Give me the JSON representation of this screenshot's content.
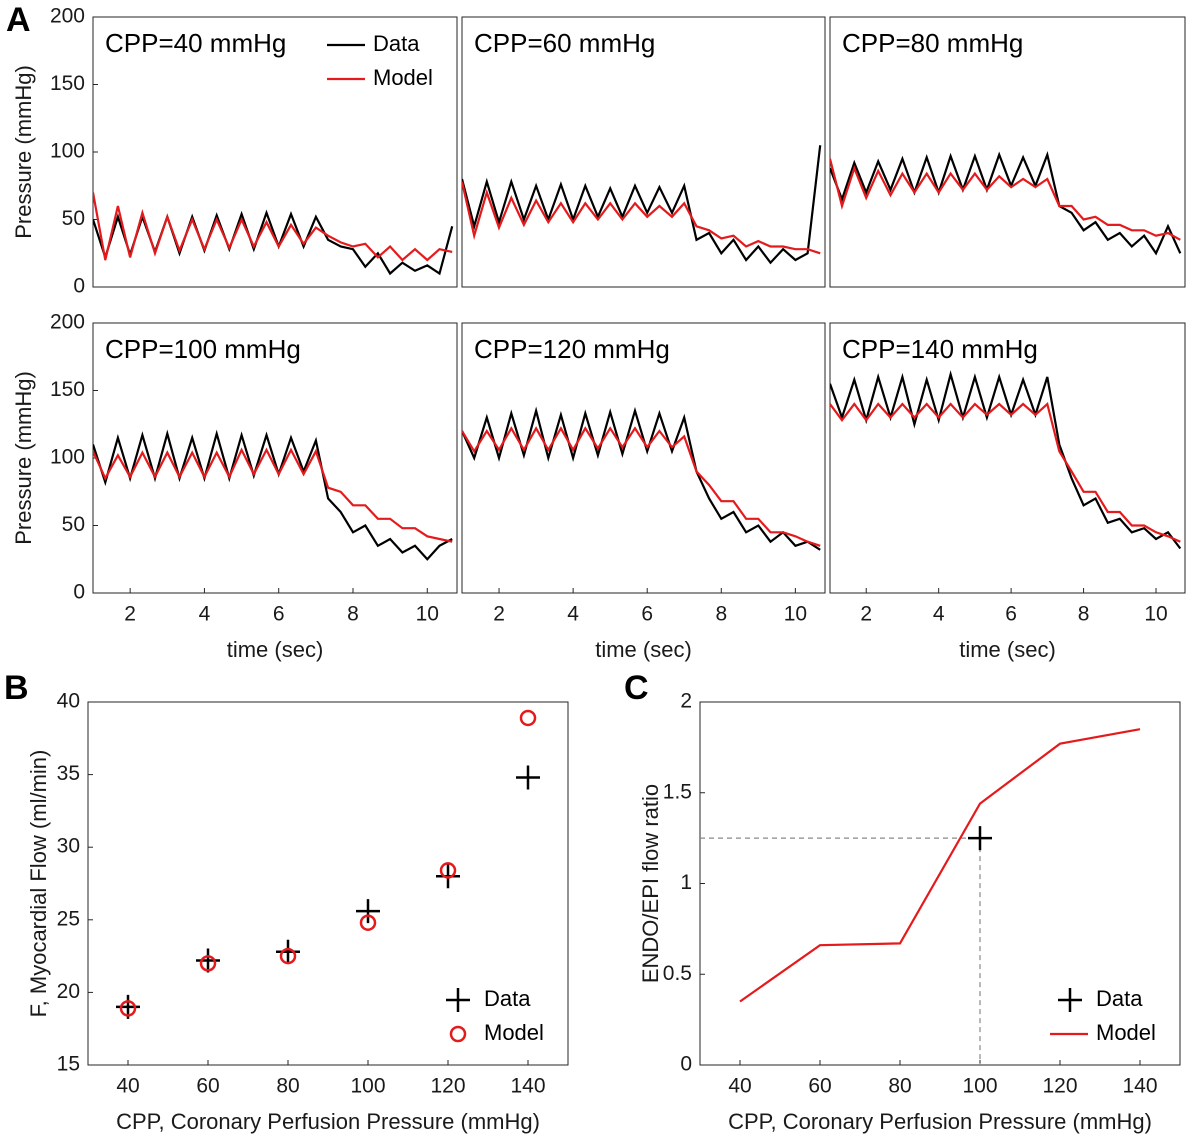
{
  "chart_data": [
    {
      "type": "line",
      "panel": "A",
      "title": "CPP=40 mmHg",
      "ylabel": "Pressure (mmHg)",
      "legend": "top-right",
      "x": [
        1,
        1.33,
        1.67,
        2,
        2.33,
        2.67,
        3,
        3.33,
        3.67,
        4,
        4.33,
        4.67,
        5,
        5.33,
        5.67,
        6,
        6.33,
        6.67,
        7,
        7.33,
        7.67,
        8,
        8.33,
        8.67,
        9,
        9.33,
        9.67,
        10,
        10.33,
        10.67
      ],
      "xlim": [
        1,
        10.8
      ],
      "ylim": [
        0,
        200
      ],
      "yticks": [
        0,
        50,
        100,
        150,
        200
      ],
      "series": [
        {
          "name": "Data",
          "color": "#000000",
          "values": [
            50,
            22,
            52,
            24,
            52,
            26,
            52,
            25,
            52,
            27,
            53,
            28,
            54,
            28,
            55,
            30,
            54,
            30,
            52,
            35,
            30,
            28,
            15,
            25,
            10,
            18,
            12,
            16,
            10,
            45
          ]
        },
        {
          "name": "Model",
          "color": "#e41a1c",
          "values": [
            70,
            20,
            60,
            22,
            55,
            25,
            52,
            27,
            50,
            28,
            50,
            29,
            50,
            30,
            48,
            30,
            46,
            32,
            44,
            38,
            33,
            30,
            32,
            22,
            30,
            20,
            28,
            20,
            28,
            26
          ]
        }
      ]
    },
    {
      "type": "line",
      "title": "CPP=60 mmHg",
      "x": [
        1,
        1.33,
        1.67,
        2,
        2.33,
        2.67,
        3,
        3.33,
        3.67,
        4,
        4.33,
        4.67,
        5,
        5.33,
        5.67,
        6,
        6.33,
        6.67,
        7,
        7.33,
        7.67,
        8,
        8.33,
        8.67,
        9,
        9.33,
        9.67,
        10,
        10.33,
        10.67
      ],
      "xlim": [
        1,
        10.8
      ],
      "ylim": [
        0,
        200
      ],
      "series": [
        {
          "color": "#000000",
          "values": [
            80,
            45,
            78,
            48,
            78,
            50,
            75,
            50,
            76,
            50,
            75,
            52,
            73,
            52,
            75,
            55,
            74,
            55,
            75,
            35,
            40,
            25,
            35,
            20,
            30,
            18,
            28,
            20,
            25,
            105
          ]
        },
        {
          "color": "#e41a1c",
          "values": [
            78,
            38,
            70,
            44,
            66,
            46,
            64,
            48,
            62,
            48,
            62,
            50,
            62,
            50,
            62,
            52,
            60,
            52,
            62,
            45,
            42,
            36,
            38,
            30,
            34,
            30,
            30,
            28,
            28,
            25
          ]
        }
      ]
    },
    {
      "type": "line",
      "title": "CPP=80 mmHg",
      "x": [
        1,
        1.33,
        1.67,
        2,
        2.33,
        2.67,
        3,
        3.33,
        3.67,
        4,
        4.33,
        4.67,
        5,
        5.33,
        5.67,
        6,
        6.33,
        6.67,
        7,
        7.33,
        7.67,
        8,
        8.33,
        8.67,
        9,
        9.33,
        9.67,
        10,
        10.33,
        10.67
      ],
      "xlim": [
        1,
        10.8
      ],
      "ylim": [
        0,
        200
      ],
      "series": [
        {
          "color": "#000000",
          "values": [
            88,
            65,
            92,
            70,
            93,
            72,
            95,
            70,
            96,
            70,
            97,
            72,
            97,
            72,
            98,
            75,
            96,
            75,
            98,
            60,
            55,
            42,
            48,
            35,
            40,
            30,
            38,
            25,
            45,
            25
          ]
        },
        {
          "color": "#e41a1c",
          "values": [
            95,
            60,
            88,
            66,
            86,
            68,
            84,
            70,
            84,
            70,
            84,
            72,
            84,
            72,
            82,
            74,
            80,
            74,
            80,
            60,
            60,
            50,
            52,
            46,
            46,
            42,
            42,
            38,
            40,
            35
          ]
        }
      ]
    },
    {
      "type": "line",
      "title": "CPP=100 mmHg",
      "ylabel": "Pressure (mmHg)",
      "xlabel": "time (sec)",
      "x": [
        1,
        1.33,
        1.67,
        2,
        2.33,
        2.67,
        3,
        3.33,
        3.67,
        4,
        4.33,
        4.67,
        5,
        5.33,
        5.67,
        6,
        6.33,
        6.67,
        7,
        7.33,
        7.67,
        8,
        8.33,
        8.67,
        9,
        9.33,
        9.67,
        10,
        10.33,
        10.67
      ],
      "xlim": [
        1,
        10.8
      ],
      "xticks": [
        2,
        4,
        6,
        8,
        10
      ],
      "ylim": [
        0,
        200
      ],
      "yticks": [
        0,
        50,
        100,
        150,
        200
      ],
      "series": [
        {
          "color": "#000000",
          "values": [
            110,
            82,
            115,
            85,
            117,
            85,
            118,
            85,
            115,
            85,
            118,
            85,
            117,
            87,
            117,
            88,
            115,
            90,
            113,
            70,
            60,
            45,
            50,
            35,
            40,
            30,
            35,
            25,
            35,
            40
          ]
        },
        {
          "color": "#e41a1c",
          "values": [
            105,
            85,
            102,
            86,
            104,
            86,
            104,
            86,
            104,
            86,
            104,
            86,
            106,
            88,
            106,
            88,
            106,
            88,
            105,
            78,
            75,
            65,
            65,
            55,
            55,
            48,
            48,
            42,
            40,
            38
          ]
        }
      ]
    },
    {
      "type": "line",
      "title": "CPP=120 mmHg",
      "xlabel": "time (sec)",
      "x": [
        1,
        1.33,
        1.67,
        2,
        2.33,
        2.67,
        3,
        3.33,
        3.67,
        4,
        4.33,
        4.67,
        5,
        5.33,
        5.67,
        6,
        6.33,
        6.67,
        7,
        7.33,
        7.67,
        8,
        8.33,
        8.67,
        9,
        9.33,
        9.67,
        10,
        10.33,
        10.67
      ],
      "xlim": [
        1,
        10.8
      ],
      "xticks": [
        2,
        4,
        6,
        8,
        10
      ],
      "ylim": [
        0,
        200
      ],
      "series": [
        {
          "color": "#000000",
          "values": [
            120,
            100,
            130,
            100,
            133,
            102,
            135,
            100,
            132,
            100,
            133,
            102,
            134,
            103,
            135,
            105,
            133,
            105,
            130,
            90,
            70,
            55,
            60,
            45,
            50,
            38,
            45,
            35,
            38,
            32
          ]
        },
        {
          "color": "#e41a1c",
          "values": [
            120,
            105,
            120,
            106,
            122,
            106,
            122,
            106,
            122,
            106,
            122,
            107,
            122,
            108,
            122,
            108,
            120,
            108,
            116,
            90,
            80,
            68,
            68,
            55,
            55,
            45,
            45,
            42,
            38,
            35
          ]
        }
      ]
    },
    {
      "type": "line",
      "title": "CPP=140 mmHg",
      "xlabel": "time (sec)",
      "x": [
        1,
        1.33,
        1.67,
        2,
        2.33,
        2.67,
        3,
        3.33,
        3.67,
        4,
        4.33,
        4.67,
        5,
        5.33,
        5.67,
        6,
        6.33,
        6.67,
        7,
        7.33,
        7.67,
        8,
        8.33,
        8.67,
        9,
        9.33,
        9.67,
        10,
        10.33,
        10.67
      ],
      "xlim": [
        1,
        10.8
      ],
      "xticks": [
        2,
        4,
        6,
        8,
        10
      ],
      "ylim": [
        0,
        200
      ],
      "series": [
        {
          "color": "#000000",
          "values": [
            155,
            130,
            158,
            128,
            160,
            130,
            160,
            125,
            158,
            128,
            162,
            130,
            160,
            130,
            160,
            132,
            158,
            132,
            160,
            110,
            85,
            65,
            70,
            52,
            55,
            45,
            48,
            40,
            45,
            33
          ]
        },
        {
          "color": "#e41a1c",
          "values": [
            140,
            128,
            140,
            128,
            140,
            130,
            140,
            130,
            140,
            130,
            140,
            130,
            140,
            132,
            140,
            132,
            140,
            132,
            140,
            105,
            90,
            75,
            75,
            60,
            60,
            50,
            50,
            45,
            42,
            38
          ]
        }
      ]
    },
    {
      "type": "scatter",
      "panel": "B",
      "xlabel": "CPP, Coronary Perfusion Pressure (mmHg)",
      "ylabel": "F, Myocardial Flow (ml/min)",
      "legend": "bottom-right",
      "x": [
        40,
        60,
        80,
        100,
        120,
        140
      ],
      "xlim": [
        30,
        150
      ],
      "xticks": [
        40,
        60,
        80,
        100,
        120,
        140
      ],
      "ylim": [
        15,
        40
      ],
      "yticks": [
        15,
        20,
        25,
        30,
        35,
        40
      ],
      "series": [
        {
          "name": "Data",
          "color": "#000000",
          "marker": "+",
          "values": [
            19.0,
            22.2,
            22.8,
            25.6,
            28.0,
            34.8
          ]
        },
        {
          "name": "Model",
          "color": "#e41a1c",
          "marker": "o",
          "values": [
            18.9,
            22.0,
            22.5,
            24.8,
            28.4,
            38.9
          ]
        }
      ]
    },
    {
      "type": "line",
      "panel": "C",
      "xlabel": "CPP, Coronary Perfusion Pressure (mmHg)",
      "ylabel": "ENDO/EPI flow ratio",
      "legend": "bottom-right",
      "xlim": [
        30,
        150
      ],
      "xticks": [
        40,
        60,
        80,
        100,
        120,
        140
      ],
      "ylim": [
        0,
        2
      ],
      "yticks": [
        0,
        0.5,
        1,
        1.5,
        2
      ],
      "series": [
        {
          "name": "Data",
          "color": "#000000",
          "marker": "+",
          "guides": true,
          "x": [
            100
          ],
          "values": [
            1.25
          ]
        },
        {
          "name": "Model",
          "color": "#e41a1c",
          "x": [
            40,
            60,
            80,
            100,
            120,
            140
          ],
          "values": [
            0.35,
            0.66,
            0.67,
            1.44,
            1.77,
            1.85
          ]
        }
      ]
    }
  ]
}
